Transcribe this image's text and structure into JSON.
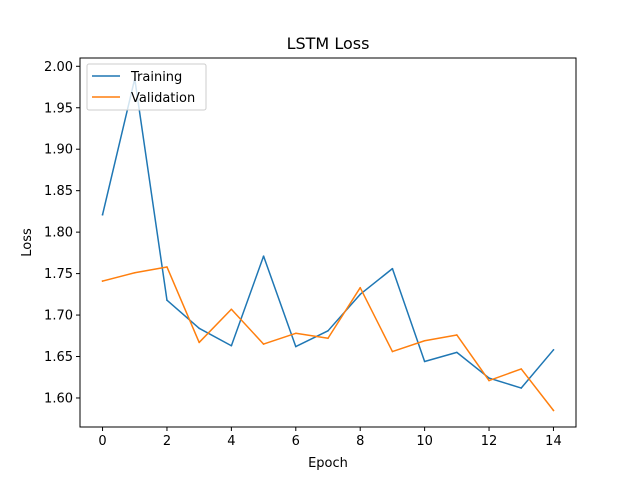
{
  "chart_data": {
    "type": "line",
    "title": "LSTM Loss",
    "xlabel": "Epoch",
    "ylabel": "Loss",
    "x": [
      0,
      1,
      2,
      3,
      4,
      5,
      6,
      7,
      8,
      9,
      10,
      11,
      12,
      13,
      14
    ],
    "xlim": [
      -0.7,
      14.7
    ],
    "ylim": [
      1.565,
      2.01
    ],
    "xticks": [
      0,
      2,
      4,
      6,
      8,
      10,
      12,
      14
    ],
    "xtick_labels": [
      "0",
      "2",
      "4",
      "6",
      "8",
      "10",
      "12",
      "14"
    ],
    "yticks": [
      1.6,
      1.65,
      1.7,
      1.75,
      1.8,
      1.85,
      1.9,
      1.95,
      2.0
    ],
    "ytick_labels": [
      "1.60",
      "1.65",
      "1.70",
      "1.75",
      "1.80",
      "1.85",
      "1.90",
      "1.95",
      "2.00"
    ],
    "grid": false,
    "legend_position": "top-left",
    "series": [
      {
        "name": "Training",
        "color": "#1f77b4",
        "values": [
          1.821,
          1.985,
          1.718,
          1.684,
          1.663,
          1.771,
          1.662,
          1.681,
          1.725,
          1.756,
          1.644,
          1.655,
          1.624,
          1.612,
          1.658
        ]
      },
      {
        "name": "Validation",
        "color": "#ff7f0e",
        "values": [
          1.741,
          1.751,
          1.758,
          1.667,
          1.707,
          1.665,
          1.678,
          1.672,
          1.733,
          1.656,
          1.669,
          1.676,
          1.621,
          1.635,
          1.585
        ]
      }
    ]
  }
}
